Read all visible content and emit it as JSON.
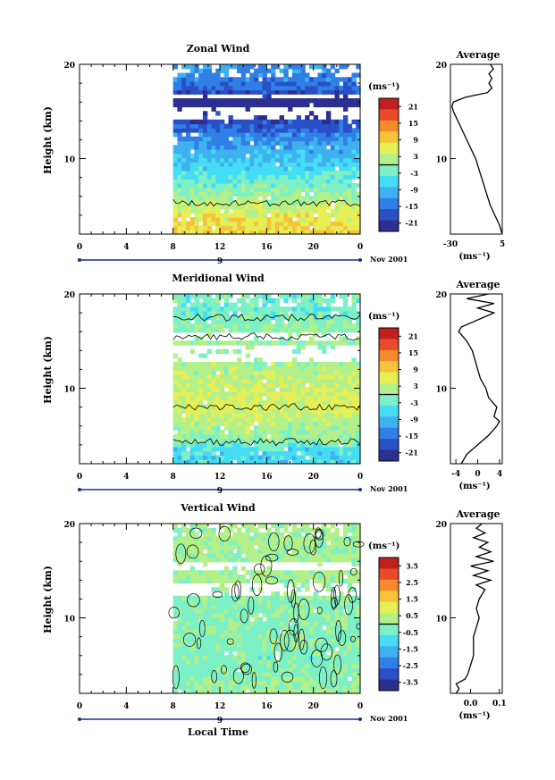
{
  "chart_data": [
    {
      "type": "heatmap",
      "title": "Zonal Wind",
      "ylabel": "Height (km)",
      "xticks": [
        "0",
        "4",
        "8",
        "12",
        "16",
        "20",
        "0"
      ],
      "xlim": [
        0,
        24
      ],
      "ylim": [
        2,
        20
      ],
      "yticks": [
        "10",
        "20"
      ],
      "date_label": "9",
      "month_label": "Nov 2001",
      "data_start_hour": 8,
      "colorbar": {
        "unit": "(ms⁻¹)",
        "ticks": [
          "21",
          "15",
          "9",
          "3",
          "-3",
          "-9",
          "-15",
          "-21"
        ],
        "range": [
          -24,
          24
        ]
      },
      "field_profile": [
        {
          "h": 2,
          "v": 8
        },
        {
          "h": 4,
          "v": 6
        },
        {
          "h": 6,
          "v": 1
        },
        {
          "h": 8,
          "v": -4
        },
        {
          "h": 10,
          "v": -8
        },
        {
          "h": 12,
          "v": -12
        },
        {
          "h": 13,
          "v": -16
        },
        {
          "h": 14.5,
          "v": -20
        },
        {
          "h": 16,
          "v": -24
        },
        {
          "h": 17.5,
          "v": -16
        },
        {
          "h": 18.5,
          "v": -14
        },
        {
          "h": 20,
          "v": -12
        }
      ],
      "missing_bands": [
        [
          14.2,
          15.5
        ],
        [
          16.5,
          17.0
        ]
      ],
      "contour_heights": [
        5.3
      ],
      "average": {
        "title": "Average",
        "xlabel": "(ms⁻¹)",
        "xticks": [
          "-30",
          "5"
        ],
        "xlim": [
          -30,
          5
        ],
        "yticks": [
          "10",
          "20"
        ],
        "profile": [
          {
            "h": 2,
            "v": 5
          },
          {
            "h": 3,
            "v": 3
          },
          {
            "h": 4,
            "v": 0
          },
          {
            "h": 5,
            "v": -3
          },
          {
            "h": 6,
            "v": -5
          },
          {
            "h": 7,
            "v": -7
          },
          {
            "h": 8,
            "v": -9
          },
          {
            "h": 9,
            "v": -11
          },
          {
            "h": 10,
            "v": -13
          },
          {
            "h": 11,
            "v": -16
          },
          {
            "h": 12,
            "v": -19
          },
          {
            "h": 13,
            "v": -22
          },
          {
            "h": 14,
            "v": -25
          },
          {
            "h": 15,
            "v": -28
          },
          {
            "h": 15.5,
            "v": -29
          },
          {
            "h": 16,
            "v": -28
          },
          {
            "h": 16.5,
            "v": -20
          },
          {
            "h": 17,
            "v": -5
          },
          {
            "h": 17.5,
            "v": -2
          },
          {
            "h": 18,
            "v": -4
          },
          {
            "h": 18.5,
            "v": -2
          },
          {
            "h": 19,
            "v": -4
          },
          {
            "h": 19.5,
            "v": -1
          },
          {
            "h": 20,
            "v": -3
          }
        ]
      }
    },
    {
      "type": "heatmap",
      "title": "Meridional Wind",
      "ylabel": "Height (km)",
      "xticks": [
        "0",
        "4",
        "8",
        "12",
        "16",
        "20",
        "0"
      ],
      "xlim": [
        0,
        24
      ],
      "ylim": [
        2,
        20
      ],
      "yticks": [
        "10",
        "20"
      ],
      "date_label": "9",
      "month_label": "Nov 2001",
      "data_start_hour": 8,
      "colorbar": {
        "unit": "(ms⁻¹)",
        "ticks": [
          "21",
          "15",
          "9",
          "3",
          "-3",
          "-9",
          "-15",
          "-21"
        ],
        "range": [
          -24,
          24
        ]
      },
      "field_profile": [
        {
          "h": 2,
          "v": -6
        },
        {
          "h": 3.5,
          "v": -6
        },
        {
          "h": 4.5,
          "v": 0
        },
        {
          "h": 6,
          "v": 2
        },
        {
          "h": 8,
          "v": 5
        },
        {
          "h": 10,
          "v": 4
        },
        {
          "h": 12,
          "v": 2
        },
        {
          "h": 14,
          "v": 0
        },
        {
          "h": 17,
          "v": -1
        },
        {
          "h": 18.5,
          "v": -3
        },
        {
          "h": 20,
          "v": -2
        }
      ],
      "missing_bands": [
        [
          13.0,
          14.5
        ],
        [
          15.2,
          16.0
        ]
      ],
      "contour_heights": [
        4.3,
        8.0,
        15.5,
        17.5
      ],
      "average": {
        "title": "Average",
        "xlabel": "(ms⁻¹)",
        "xticks": [
          "-4",
          "0",
          "4"
        ],
        "xlim": [
          -5,
          4.5
        ],
        "yticks": [
          "10",
          "20"
        ],
        "profile": [
          {
            "h": 2,
            "v": -3
          },
          {
            "h": 3,
            "v": -2
          },
          {
            "h": 4,
            "v": 0
          },
          {
            "h": 5,
            "v": 2
          },
          {
            "h": 6,
            "v": 3.5
          },
          {
            "h": 6.5,
            "v": 4
          },
          {
            "h": 7,
            "v": 3
          },
          {
            "h": 8,
            "v": 3.5
          },
          {
            "h": 9,
            "v": 2
          },
          {
            "h": 10,
            "v": 1.5
          },
          {
            "h": 11,
            "v": 0.5
          },
          {
            "h": 12,
            "v": 0
          },
          {
            "h": 13,
            "v": -0.5
          },
          {
            "h": 14,
            "v": -1
          },
          {
            "h": 15,
            "v": -2
          },
          {
            "h": 16,
            "v": -3.5
          },
          {
            "h": 16.5,
            "v": -3
          },
          {
            "h": 17,
            "v": -1
          },
          {
            "h": 17.5,
            "v": 1
          },
          {
            "h": 18,
            "v": 3
          },
          {
            "h": 18.5,
            "v": 0
          },
          {
            "h": 19,
            "v": 3
          },
          {
            "h": 19.5,
            "v": -2
          },
          {
            "h": 20,
            "v": 2
          }
        ]
      }
    },
    {
      "type": "heatmap",
      "title": "Vertical Wind",
      "ylabel": "Height (km)",
      "xlabel": "Local Time",
      "xticks": [
        "0",
        "4",
        "8",
        "12",
        "16",
        "20",
        "0"
      ],
      "xlim": [
        0,
        24
      ],
      "ylim": [
        2,
        20
      ],
      "yticks": [
        "10",
        "20"
      ],
      "date_label": "9",
      "month_label": "Nov 2001",
      "data_start_hour": 8,
      "colorbar": {
        "unit": "(ms⁻¹)",
        "ticks": [
          "3.5",
          "2.5",
          "1.5",
          "0.5",
          "-0.5",
          "-1.5",
          "-2.5",
          "-3.5"
        ],
        "range": [
          -4,
          4
        ]
      },
      "field_profile": [
        {
          "h": 2,
          "v": 0.1
        },
        {
          "h": 4,
          "v": -0.2
        },
        {
          "h": 6,
          "v": -0.3
        },
        {
          "h": 8,
          "v": -0.1
        },
        {
          "h": 10,
          "v": -0.2
        },
        {
          "h": 12,
          "v": -0.2
        },
        {
          "h": 14,
          "v": 0.2
        },
        {
          "h": 16,
          "v": 0.2
        },
        {
          "h": 18,
          "v": 0.2
        },
        {
          "h": 20,
          "v": 0.2
        }
      ],
      "missing_bands": [
        [
          12.5,
          13.5
        ],
        [
          15.0,
          16.0
        ]
      ],
      "contour_heights": [],
      "average": {
        "title": "Average",
        "xlabel": "(ms⁻¹)",
        "xticks": [
          "0.0",
          "0.1"
        ],
        "xlim": [
          -0.07,
          0.11
        ],
        "yticks": [
          "10",
          "20"
        ],
        "profile": [
          {
            "h": 2,
            "v": -0.05
          },
          {
            "h": 2.5,
            "v": -0.04
          },
          {
            "h": 3,
            "v": -0.05
          },
          {
            "h": 3.5,
            "v": -0.02
          },
          {
            "h": 4,
            "v": -0.01
          },
          {
            "h": 5,
            "v": 0.0
          },
          {
            "h": 6,
            "v": 0.01
          },
          {
            "h": 7,
            "v": 0.01
          },
          {
            "h": 8,
            "v": 0.01
          },
          {
            "h": 9,
            "v": 0.02
          },
          {
            "h": 10,
            "v": 0.03
          },
          {
            "h": 11,
            "v": 0.02
          },
          {
            "h": 12,
            "v": 0.03
          },
          {
            "h": 13,
            "v": 0.05
          },
          {
            "h": 13.5,
            "v": 0.02
          },
          {
            "h": 14,
            "v": 0.07
          },
          {
            "h": 14.5,
            "v": 0.01
          },
          {
            "h": 15,
            "v": 0.06
          },
          {
            "h": 15.5,
            "v": 0.0
          },
          {
            "h": 16,
            "v": 0.08
          },
          {
            "h": 16.5,
            "v": 0.02
          },
          {
            "h": 17,
            "v": 0.07
          },
          {
            "h": 17.5,
            "v": 0.03
          },
          {
            "h": 18,
            "v": 0.06
          },
          {
            "h": 18.5,
            "v": 0.01
          },
          {
            "h": 19,
            "v": 0.05
          },
          {
            "h": 19.5,
            "v": 0.02
          },
          {
            "h": 20,
            "v": 0.04
          }
        ]
      }
    }
  ]
}
